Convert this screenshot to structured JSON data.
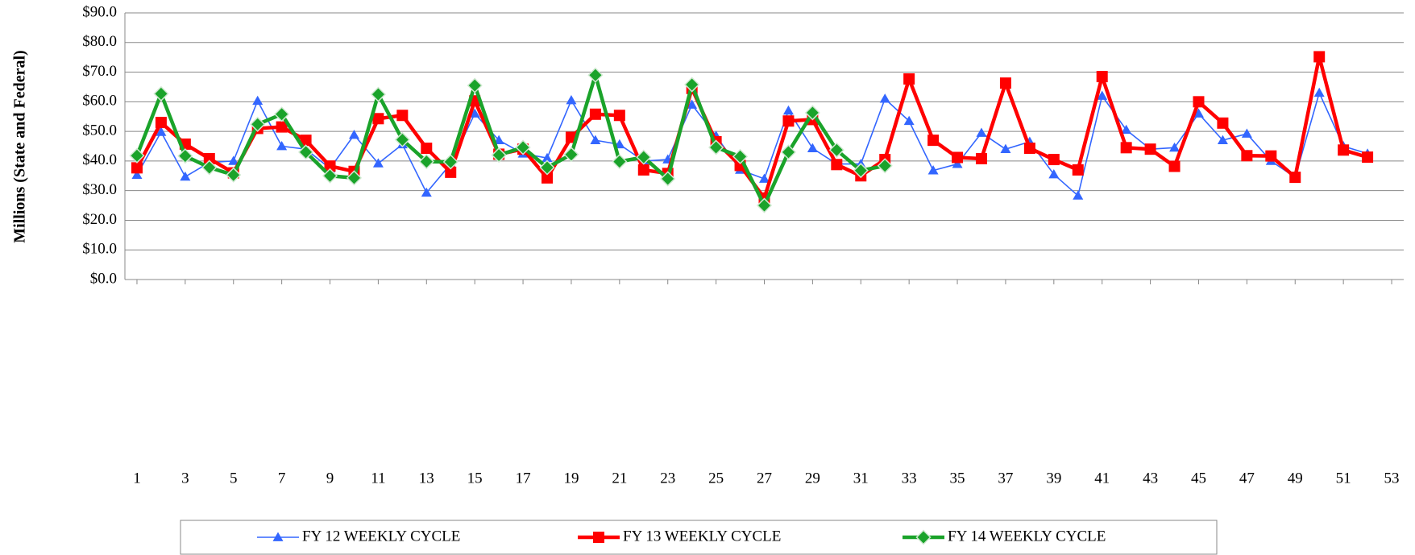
{
  "chart_data": {
    "type": "line",
    "y_label": "Millions (State and Federal)",
    "x": [
      1,
      2,
      3,
      4,
      5,
      6,
      7,
      8,
      9,
      10,
      11,
      12,
      13,
      14,
      15,
      16,
      17,
      18,
      19,
      20,
      21,
      22,
      23,
      24,
      25,
      26,
      27,
      28,
      29,
      30,
      31,
      32,
      33,
      34,
      35,
      36,
      37,
      38,
      39,
      40,
      41,
      42,
      43,
      44,
      45,
      46,
      47,
      48,
      49,
      50,
      51,
      52
    ],
    "xlim": [
      0.5,
      53.5
    ],
    "xticks": [
      1,
      3,
      5,
      7,
      9,
      11,
      13,
      15,
      17,
      19,
      21,
      23,
      25,
      27,
      29,
      31,
      33,
      35,
      37,
      39,
      41,
      43,
      45,
      47,
      49,
      51,
      53
    ],
    "ylim": [
      0,
      90
    ],
    "yticks": [
      {
        "value": 0,
        "label": "$0.0"
      },
      {
        "value": 10,
        "label": "$10.0"
      },
      {
        "value": 20,
        "label": "$20.0"
      },
      {
        "value": 30,
        "label": "$30.0"
      },
      {
        "value": 40,
        "label": "$40.0"
      },
      {
        "value": 50,
        "label": "$50.0"
      },
      {
        "value": 60,
        "label": "$60.0"
      },
      {
        "value": 70,
        "label": "$70.0"
      },
      {
        "value": 80,
        "label": "$80.0"
      },
      {
        "value": 90,
        "label": "$90.0"
      }
    ],
    "grid": true,
    "legend": "bottom",
    "series": [
      {
        "name": "FY 12 WEEKLY  CYCLE",
        "color": "#3366ff",
        "marker": "triangle",
        "values": [
          35.3,
          49.8,
          34.7,
          39.5,
          40,
          60.3,
          45,
          44,
          37.5,
          48.8,
          39.2,
          45.6,
          29.3,
          39,
          56,
          47,
          42.5,
          41,
          60.5,
          47,
          45.6,
          40,
          40.5,
          59,
          48.5,
          37,
          34,
          57,
          44.3,
          39,
          39,
          61,
          53.5,
          36.8,
          39,
          49.5,
          44,
          46.5,
          35.5,
          28.3,
          62,
          50.5,
          44,
          44.5,
          56,
          47,
          49.2,
          40,
          34.5,
          63,
          45,
          42.5
        ]
      },
      {
        "name": "FY 13 WEEKLY  CYCLE",
        "color": "#ff0000",
        "marker": "square",
        "values": [
          37.7,
          53,
          45.7,
          40.8,
          36,
          51,
          51.5,
          47,
          38.3,
          36.5,
          54.3,
          55.4,
          44.3,
          36.2,
          60.3,
          42.3,
          44,
          34.3,
          48,
          55.8,
          55.4,
          37,
          35.8,
          64.5,
          46.5,
          38.5,
          27.5,
          53.5,
          54,
          38.8,
          35,
          40.5,
          67.7,
          47,
          41.2,
          40.8,
          66.3,
          44.3,
          40.5,
          37,
          68.5,
          44.5,
          44,
          38.2,
          60,
          52.8,
          41.8,
          41.7,
          34.5,
          75.2,
          43.7,
          41.3
        ]
      },
      {
        "name": "FY 14 WEEKLY  CYCLE",
        "color": "#1aa32a",
        "marker": "diamond",
        "values": [
          41.8,
          62.7,
          41.7,
          37.8,
          35.3,
          52.4,
          55.8,
          43,
          35,
          34.3,
          62.5,
          47.2,
          39.8,
          39.7,
          65.5,
          42,
          44.6,
          37.8,
          42.2,
          69,
          39.8,
          41.3,
          34,
          65.8,
          44.6,
          41.5,
          25,
          43,
          56.3,
          43.7,
          36.8,
          38.4,
          null,
          null,
          null,
          null,
          null,
          null,
          null,
          null,
          null,
          null,
          null,
          null,
          null,
          null,
          null,
          null,
          null,
          null,
          null,
          null
        ]
      }
    ]
  }
}
